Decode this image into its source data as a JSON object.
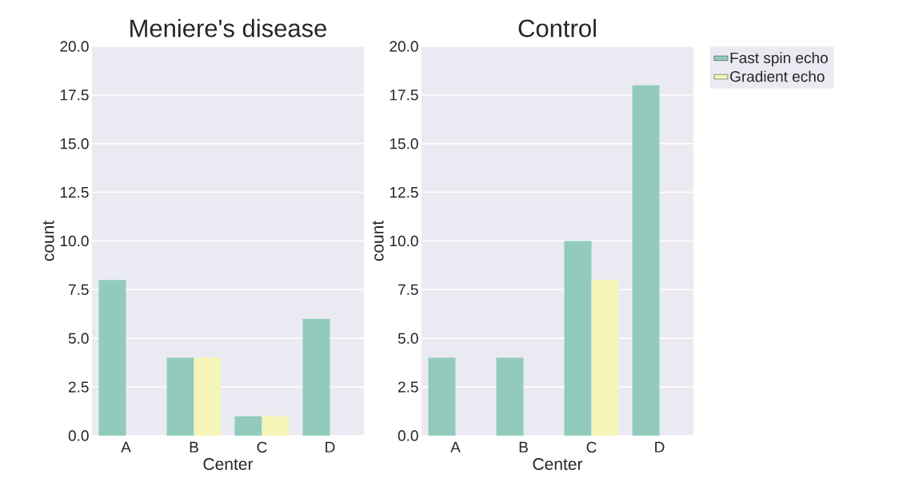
{
  "chart_data": [
    {
      "type": "bar",
      "title": "Meniere's disease",
      "xlabel": "Center",
      "ylabel": "count",
      "categories": [
        "A",
        "B",
        "C",
        "D"
      ],
      "series": [
        {
          "color": "#92cbbd",
          "values": [
            8,
            4,
            1,
            6
          ]
        },
        {
          "color": "#f5f5b8",
          "values": [
            null,
            4,
            1,
            null
          ]
        }
      ],
      "ylim": [
        0,
        20
      ],
      "yticks": [
        {
          "value": 0,
          "label": "0.0"
        },
        {
          "value": 2.5,
          "label": "2.5"
        },
        {
          "value": 5,
          "label": "5.0"
        },
        {
          "value": 7.5,
          "label": "7.5"
        },
        {
          "value": 10,
          "label": "10.0"
        },
        {
          "value": 12.5,
          "label": "12.5"
        },
        {
          "value": 15,
          "label": "15.0"
        },
        {
          "value": 17.5,
          "label": "17.5"
        },
        {
          "value": 20,
          "label": "20.0"
        }
      ],
      "grid": "y"
    },
    {
      "type": "bar",
      "title": "Control",
      "xlabel": "Center",
      "ylabel": "count",
      "categories": [
        "A",
        "B",
        "C",
        "D"
      ],
      "series": [
        {
          "name": "Fast spin echo",
          "color": "#92cbbd",
          "values": [
            4,
            4,
            10,
            18
          ]
        },
        {
          "name": "Gradient echo",
          "color": "#f5f5b8",
          "values": [
            null,
            null,
            8,
            null
          ]
        }
      ],
      "ylim": [
        0,
        20
      ],
      "yticks": [
        {
          "value": 0,
          "label": "0.0"
        },
        {
          "value": 2.5,
          "label": "2.5"
        },
        {
          "value": 5,
          "label": "5.0"
        },
        {
          "value": 7.5,
          "label": "7.5"
        },
        {
          "value": 10,
          "label": "10.0"
        },
        {
          "value": 12.5,
          "label": "12.5"
        },
        {
          "value": 15,
          "label": "15.0"
        },
        {
          "value": 17.5,
          "label": "17.5"
        },
        {
          "value": 20,
          "label": "20.0"
        }
      ],
      "grid": "y",
      "legend": "top right"
    }
  ]
}
